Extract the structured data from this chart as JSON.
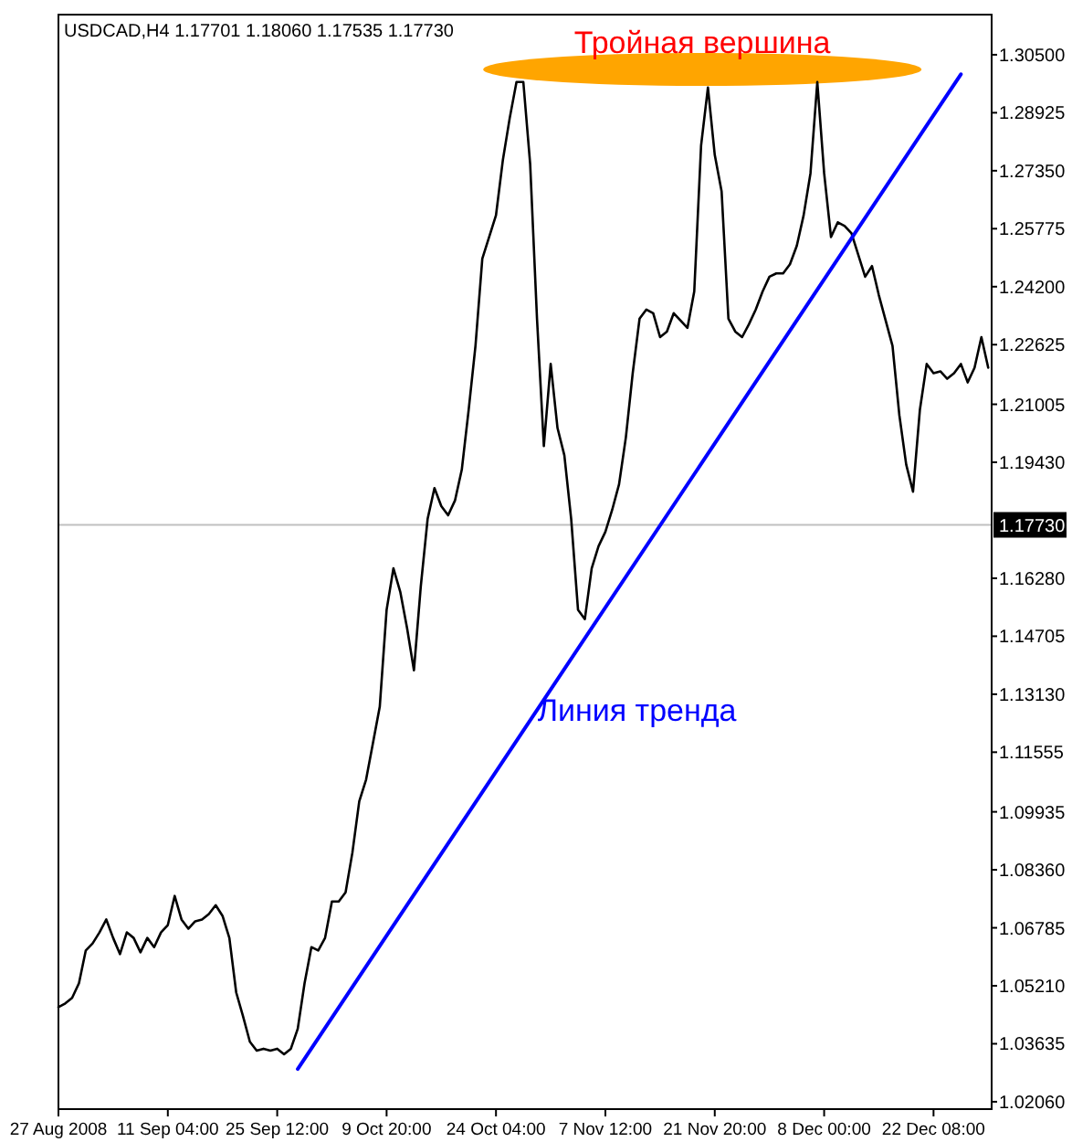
{
  "chart_data": {
    "type": "line",
    "title": "USDCAD,H4  1.17701 1.18060 1.17535 1.17730",
    "categories": [
      "27 Aug 2008",
      null,
      null,
      null,
      null,
      null,
      null,
      null,
      null,
      null,
      null,
      null,
      null,
      null,
      null,
      null,
      "11 Sep 04:00",
      null,
      null,
      null,
      null,
      null,
      null,
      null,
      null,
      null,
      null,
      null,
      null,
      null,
      null,
      null,
      "25 Sep 12:00",
      null,
      null,
      null,
      null,
      null,
      null,
      null,
      null,
      null,
      null,
      null,
      null,
      null,
      null,
      null,
      "9 Oct 20:00",
      null,
      null,
      null,
      null,
      null,
      null,
      null,
      null,
      null,
      null,
      null,
      null,
      null,
      null,
      null,
      "24 Oct 04:00",
      null,
      null,
      null,
      null,
      null,
      null,
      null,
      null,
      null,
      null,
      null,
      null,
      null,
      null,
      null,
      "7 Nov 12:00",
      null,
      null,
      null,
      null,
      null,
      null,
      null,
      null,
      null,
      null,
      null,
      null,
      null,
      null,
      null,
      "21 Nov 20:00",
      null,
      null,
      null,
      null,
      null,
      null,
      null,
      null,
      null,
      null,
      null,
      null,
      null,
      null,
      null,
      "8 Dec 00:00",
      null,
      null,
      null,
      null,
      null,
      null,
      null,
      null,
      null,
      null,
      null,
      null,
      null,
      null,
      null,
      "22 Dec 08:00",
      null,
      null,
      null,
      null,
      null,
      null,
      null,
      null
    ],
    "series": [
      {
        "color": "#000000",
        "values": [
          1.0463,
          1.0473,
          1.0488,
          1.0528,
          1.0617,
          1.0636,
          1.0666,
          1.0701,
          1.0651,
          1.0607,
          1.0666,
          1.0651,
          1.0612,
          1.0651,
          1.0626,
          1.0666,
          1.0686,
          1.0765,
          1.0701,
          1.0676,
          1.0696,
          1.0701,
          1.0716,
          1.074,
          1.0711,
          1.0651,
          1.0503,
          1.0438,
          1.0369,
          1.0345,
          1.035,
          1.0345,
          1.035,
          1.0335,
          1.035,
          1.0404,
          1.0528,
          1.0626,
          1.0617,
          1.0651,
          1.075,
          1.075,
          1.0775,
          1.0883,
          1.1022,
          1.1081,
          1.118,
          1.1279,
          1.1542,
          1.1655,
          1.1591,
          1.1492,
          1.1378,
          1.1606,
          1.1789,
          1.1873,
          1.1824,
          1.1799,
          1.1839,
          1.1923,
          1.2085,
          1.2259,
          1.2496,
          1.2555,
          1.2614,
          1.2763,
          1.2877,
          1.2976,
          1.2976,
          1.2753,
          1.2333,
          1.1987,
          1.221,
          1.2036,
          1.1962,
          1.1789,
          1.1542,
          1.1517,
          1.1655,
          1.1715,
          1.1754,
          1.1814,
          1.1883,
          1.2011,
          1.2185,
          1.2333,
          1.2358,
          1.2348,
          1.2283,
          1.2298,
          1.2348,
          1.2328,
          1.2308,
          1.2407,
          1.2803,
          1.2961,
          1.2778,
          1.2679,
          1.2333,
          1.2298,
          1.2283,
          1.2318,
          1.2358,
          1.2407,
          1.2447,
          1.2456,
          1.2456,
          1.2481,
          1.2531,
          1.2614,
          1.2728,
          1.2976,
          1.2728,
          1.2555,
          1.2595,
          1.2585,
          1.2565,
          1.2506,
          1.2447,
          1.2476,
          1.2397,
          1.2328,
          1.2259,
          1.2071,
          1.1937,
          1.1863,
          1.2085,
          1.221,
          1.2185,
          1.219,
          1.217,
          1.2185,
          1.221,
          1.216,
          1.22,
          1.2283,
          1.22
        ]
      },
      {
        "color": "#0000ff",
        "values": [
          null,
          null,
          null,
          null,
          null,
          null,
          null,
          null,
          null,
          null,
          null,
          null,
          null,
          null,
          null,
          null,
          null,
          null,
          null,
          null,
          null,
          null,
          null,
          null,
          null,
          null,
          null,
          null,
          null,
          null,
          null,
          null,
          null,
          null,
          null,
          1.0295,
          null,
          null,
          null,
          null,
          null,
          null,
          null,
          null,
          null,
          null,
          null,
          null,
          null,
          null,
          null,
          null,
          null,
          null,
          null,
          null,
          null,
          null,
          null,
          null,
          null,
          null,
          null,
          null,
          null,
          null,
          null,
          null,
          null,
          null,
          null,
          null,
          null,
          null,
          null,
          null,
          null,
          null,
          null,
          null,
          null,
          null,
          null,
          null,
          null,
          null,
          null,
          null,
          null,
          null,
          null,
          null,
          null,
          null,
          null,
          null,
          null,
          null,
          null,
          null,
          null,
          null,
          null,
          null,
          null,
          null,
          null,
          null,
          null,
          null,
          null,
          null,
          null,
          null,
          null,
          null,
          null,
          null,
          null,
          null,
          null,
          null,
          null,
          null,
          null,
          null,
          null,
          null,
          null,
          null,
          null,
          null,
          1.2997,
          null,
          null,
          null,
          null
        ]
      }
    ],
    "ylim": [
      1.0186,
      1.3159
    ],
    "yticks": [
      {
        "value": 1.0206,
        "label": "1.02060"
      },
      {
        "value": 1.03635,
        "label": "1.03635"
      },
      {
        "value": 1.0521,
        "label": "1.05210"
      },
      {
        "value": 1.06785,
        "label": "1.06785"
      },
      {
        "value": 1.0836,
        "label": "1.08360"
      },
      {
        "value": 1.09935,
        "label": "1.09935"
      },
      {
        "value": 1.11555,
        "label": "1.11555"
      },
      {
        "value": 1.1313,
        "label": "1.13130"
      },
      {
        "value": 1.14705,
        "label": "1.14705"
      },
      {
        "value": 1.1628,
        "label": "1.16280"
      },
      {
        "value": 1.1943,
        "label": "1.19430"
      },
      {
        "value": 1.21005,
        "label": "1.21005"
      },
      {
        "value": 1.22625,
        "label": "1.22625"
      },
      {
        "value": 1.242,
        "label": "1.24200"
      },
      {
        "value": 1.25775,
        "label": "1.25775"
      },
      {
        "value": 1.2735,
        "label": "1.27350"
      },
      {
        "value": 1.28925,
        "label": "1.28925"
      },
      {
        "value": 1.305,
        "label": "1.30500"
      }
    ],
    "ref_lines": [
      {
        "axis": "y",
        "value": 1.1773,
        "label": "1.17730",
        "color": "#c0c0c0"
      }
    ],
    "annotations": [
      "Тройная вершина",
      "Линия тренда"
    ],
    "grid": false,
    "marker": "none",
    "line_style": "solid"
  }
}
